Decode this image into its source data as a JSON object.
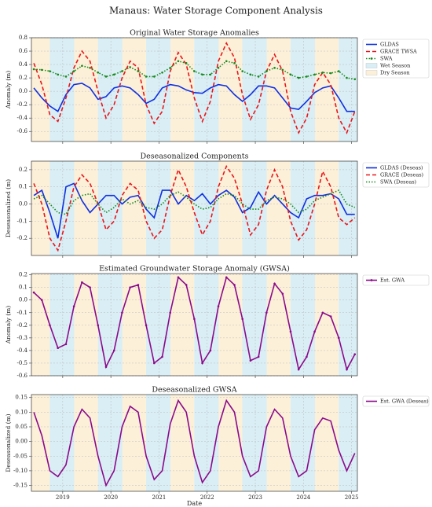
{
  "title": "Manaus: Water Storage Component Analysis",
  "chart_data": [
    {
      "type": "line",
      "title": "Original Water Storage Anomalies",
      "ylabel": "Anomaly (m)",
      "xlim": [
        2018.35,
        2025.12
      ],
      "ylim": [
        -0.75,
        0.8
      ],
      "yticks": [
        -0.6,
        -0.4,
        -0.2,
        {
          "value": 0,
          "label": "0.0"
        },
        0.2,
        0.4,
        0.6,
        0.8
      ],
      "grid": true,
      "legend": "outside-right",
      "x": [
        2018.4,
        2018.567,
        2018.733,
        2018.9,
        2019.067,
        2019.233,
        2019.4,
        2019.567,
        2019.733,
        2019.9,
        2020.067,
        2020.233,
        2020.4,
        2020.567,
        2020.733,
        2020.9,
        2021.067,
        2021.233,
        2021.4,
        2021.567,
        2021.733,
        2021.9,
        2022.067,
        2022.233,
        2022.4,
        2022.567,
        2022.733,
        2022.9,
        2023.067,
        2023.233,
        2023.4,
        2023.567,
        2023.733,
        2023.9,
        2024.067,
        2024.233,
        2024.4,
        2024.567,
        2024.733,
        2024.9,
        2025.067
      ],
      "series": [
        {
          "name": "GLDAS",
          "color": "#1030e0",
          "style": "solid",
          "marker": false,
          "values": [
            0.05,
            -0.1,
            -0.22,
            -0.3,
            -0.05,
            0.1,
            0.12,
            0.05,
            -0.12,
            -0.08,
            0.05,
            0.08,
            0.05,
            -0.05,
            -0.18,
            -0.12,
            0.05,
            0.1,
            0.08,
            0.02,
            -0.02,
            -0.03,
            0.05,
            0.1,
            0.08,
            -0.05,
            -0.15,
            -0.05,
            0.08,
            0.08,
            0.05,
            -0.1,
            -0.25,
            -0.27,
            -0.15,
            -0.02,
            0.05,
            0.08,
            -0.1,
            -0.3,
            -0.3
          ]
        },
        {
          "name": "GRACE TWSA",
          "color": "#e8161b",
          "style": "dashed",
          "marker": false,
          "values": [
            0.42,
            0.1,
            -0.35,
            -0.45,
            -0.1,
            0.35,
            0.6,
            0.45,
            0.0,
            -0.4,
            -0.2,
            0.2,
            0.45,
            0.35,
            -0.2,
            -0.48,
            -0.3,
            0.3,
            0.58,
            0.4,
            -0.1,
            -0.45,
            -0.15,
            0.45,
            0.72,
            0.5,
            -0.05,
            -0.42,
            -0.2,
            0.3,
            0.55,
            0.3,
            -0.3,
            -0.62,
            -0.4,
            0.1,
            0.28,
            0.1,
            -0.4,
            -0.62,
            -0.3
          ]
        },
        {
          "name": "SWA",
          "color": "#16891c",
          "style": "dotted",
          "marker": true,
          "values": [
            0.33,
            0.32,
            0.3,
            0.25,
            0.22,
            0.3,
            0.38,
            0.35,
            0.28,
            0.22,
            0.25,
            0.3,
            0.36,
            0.3,
            0.22,
            0.22,
            0.28,
            0.35,
            0.45,
            0.42,
            0.3,
            0.25,
            0.25,
            0.35,
            0.45,
            0.42,
            0.3,
            0.25,
            0.22,
            0.3,
            0.35,
            0.32,
            0.25,
            0.2,
            0.22,
            0.25,
            0.28,
            0.27,
            0.3,
            0.2,
            0.18
          ]
        }
      ],
      "seasons": [
        {
          "name": "Wet Season",
          "color": "#d9eef5",
          "spans": [
            [
              2018.73,
              2019.24
            ],
            [
              2019.73,
              2020.24
            ],
            [
              2020.73,
              2021.24
            ],
            [
              2021.73,
              2022.24
            ],
            [
              2022.73,
              2023.24
            ],
            [
              2023.73,
              2024.24
            ],
            [
              2024.73,
              2025.12
            ]
          ]
        },
        {
          "name": "Dry Season",
          "color": "#fdf0d8",
          "spans": [
            [
              2018.35,
              2018.73
            ],
            [
              2019.24,
              2019.73
            ],
            [
              2020.24,
              2020.73
            ],
            [
              2021.24,
              2021.73
            ],
            [
              2022.24,
              2022.73
            ],
            [
              2023.24,
              2023.73
            ],
            [
              2024.24,
              2024.73
            ]
          ]
        }
      ]
    },
    {
      "type": "line",
      "title": "Deseasonalized Components",
      "ylabel": "Deseasonalized (m)",
      "xlim": [
        2018.35,
        2025.12
      ],
      "ylim": [
        -0.3,
        0.25
      ],
      "yticks": [
        -0.2,
        -0.1,
        {
          "value": 0,
          "label": "0.0"
        },
        0.1,
        0.2
      ],
      "grid": true,
      "legend": "outside-right",
      "x": [
        2018.4,
        2018.567,
        2018.733,
        2018.9,
        2019.067,
        2019.233,
        2019.4,
        2019.567,
        2019.733,
        2019.9,
        2020.067,
        2020.233,
        2020.4,
        2020.567,
        2020.733,
        2020.9,
        2021.067,
        2021.233,
        2021.4,
        2021.567,
        2021.733,
        2021.9,
        2022.067,
        2022.233,
        2022.4,
        2022.567,
        2022.733,
        2022.9,
        2023.067,
        2023.233,
        2023.4,
        2023.567,
        2023.733,
        2023.9,
        2024.067,
        2024.233,
        2024.4,
        2024.567,
        2024.733,
        2024.9,
        2025.067
      ],
      "series": [
        {
          "name": "GLDAS (Deseas)",
          "color": "#1030e0",
          "style": "solid",
          "marker": false,
          "values": [
            0.05,
            0.08,
            -0.05,
            -0.2,
            0.1,
            0.12,
            0.02,
            -0.05,
            0.0,
            0.05,
            0.05,
            0.0,
            0.04,
            0.05,
            -0.03,
            -0.08,
            0.08,
            0.08,
            0.0,
            0.05,
            0.02,
            0.06,
            0.0,
            0.05,
            0.08,
            0.04,
            -0.05,
            -0.02,
            0.07,
            0.0,
            0.05,
            0.0,
            -0.05,
            -0.08,
            0.03,
            0.05,
            0.05,
            0.06,
            0.03,
            -0.06,
            -0.06
          ]
        },
        {
          "name": "GRACE (Deseas)",
          "color": "#e8161b",
          "style": "dashed",
          "marker": false,
          "values": [
            0.12,
            0.0,
            -0.2,
            -0.27,
            -0.1,
            0.1,
            0.17,
            0.12,
            0.0,
            -0.15,
            -0.1,
            0.05,
            0.12,
            0.08,
            -0.1,
            -0.2,
            -0.15,
            0.05,
            0.2,
            0.1,
            -0.05,
            -0.18,
            -0.1,
            0.1,
            0.22,
            0.15,
            0.0,
            -0.18,
            -0.12,
            0.08,
            0.2,
            0.1,
            -0.1,
            -0.21,
            -0.15,
            0.0,
            0.19,
            0.1,
            -0.08,
            -0.12,
            -0.08
          ]
        },
        {
          "name": "SWA (Deseas)",
          "color": "#16891c",
          "style": "dotted",
          "marker": false,
          "values": [
            0.03,
            0.05,
            0.0,
            -0.05,
            -0.06,
            0.02,
            0.05,
            0.06,
            0.0,
            -0.05,
            -0.02,
            0.03,
            0.0,
            0.02,
            -0.02,
            -0.03,
            0.0,
            0.05,
            0.07,
            0.04,
            0.0,
            -0.03,
            -0.02,
            0.03,
            0.06,
            0.05,
            0.0,
            -0.03,
            -0.03,
            0.02,
            0.04,
            0.03,
            0.0,
            -0.05,
            -0.03,
            0.02,
            0.04,
            0.06,
            0.08,
            0.0,
            -0.02
          ]
        }
      ]
    },
    {
      "type": "line",
      "title": "Estimated Groundwater Storage Anomaly (GWSA)",
      "ylabel": "Anomaly (m)",
      "xlim": [
        2018.35,
        2025.12
      ],
      "ylim": [
        -0.6,
        0.21
      ],
      "yticks": [
        -0.6,
        -0.5,
        -0.4,
        -0.3,
        -0.2,
        -0.1,
        {
          "value": 0,
          "label": "0.0"
        },
        0.1,
        0.2
      ],
      "grid": true,
      "legend": "outside-right",
      "x": [
        2018.4,
        2018.567,
        2018.733,
        2018.9,
        2019.067,
        2019.233,
        2019.4,
        2019.567,
        2019.733,
        2019.9,
        2020.067,
        2020.233,
        2020.4,
        2020.567,
        2020.733,
        2020.9,
        2021.067,
        2021.233,
        2021.4,
        2021.567,
        2021.733,
        2021.9,
        2022.067,
        2022.233,
        2022.4,
        2022.567,
        2022.733,
        2022.9,
        2023.067,
        2023.233,
        2023.4,
        2023.567,
        2023.733,
        2023.9,
        2024.067,
        2024.233,
        2024.4,
        2024.567,
        2024.733,
        2024.9,
        2025.067
      ],
      "series": [
        {
          "name": "Est. GWA",
          "color": "#8b0a8b",
          "style": "solid",
          "marker": true,
          "values": [
            0.06,
            0.0,
            -0.2,
            -0.38,
            -0.35,
            -0.05,
            0.14,
            0.1,
            -0.2,
            -0.53,
            -0.4,
            -0.1,
            0.1,
            0.12,
            -0.2,
            -0.5,
            -0.45,
            -0.1,
            0.18,
            0.12,
            -0.15,
            -0.5,
            -0.4,
            -0.05,
            0.18,
            0.12,
            -0.15,
            -0.48,
            -0.45,
            -0.1,
            0.13,
            0.05,
            -0.25,
            -0.55,
            -0.45,
            -0.25,
            -0.1,
            -0.13,
            -0.3,
            -0.55,
            -0.43
          ]
        }
      ]
    },
    {
      "type": "line",
      "title": "Deseasonalized GWSA",
      "ylabel": "Deseasonalized (m)",
      "xlabel": "Date",
      "xlim": [
        2018.35,
        2025.12
      ],
      "ylim": [
        -0.17,
        0.16
      ],
      "xticks": [
        2019,
        2020,
        2021,
        2022,
        2023,
        2024,
        2025
      ],
      "yticks": [
        -0.15,
        {
          "value": -0.1,
          "label": "-0.10"
        },
        -0.05,
        {
          "value": 0,
          "label": "0.00"
        },
        0.05,
        {
          "value": 0.1,
          "label": "0.10"
        },
        0.15
      ],
      "grid": true,
      "legend": "outside-right",
      "x": [
        2018.4,
        2018.567,
        2018.733,
        2018.9,
        2019.067,
        2019.233,
        2019.4,
        2019.567,
        2019.733,
        2019.9,
        2020.067,
        2020.233,
        2020.4,
        2020.567,
        2020.733,
        2020.9,
        2021.067,
        2021.233,
        2021.4,
        2021.567,
        2021.733,
        2021.9,
        2022.067,
        2022.233,
        2022.4,
        2022.567,
        2022.733,
        2022.9,
        2023.067,
        2023.233,
        2023.4,
        2023.567,
        2023.733,
        2023.9,
        2024.067,
        2024.233,
        2024.4,
        2024.567,
        2024.733,
        2024.9,
        2025.067
      ],
      "series": [
        {
          "name": "Est. GWA (Deseas)",
          "color": "#8b0a8b",
          "style": "solid",
          "marker": false,
          "values": [
            0.1,
            0.02,
            -0.1,
            -0.12,
            -0.08,
            0.05,
            0.11,
            0.08,
            -0.05,
            -0.15,
            -0.1,
            0.05,
            0.12,
            0.1,
            -0.05,
            -0.13,
            -0.1,
            0.06,
            0.14,
            0.1,
            -0.05,
            -0.14,
            -0.1,
            0.05,
            0.14,
            0.1,
            -0.05,
            -0.12,
            -0.1,
            0.05,
            0.11,
            0.08,
            -0.05,
            -0.12,
            -0.1,
            0.04,
            0.08,
            0.07,
            -0.03,
            -0.1,
            -0.04
          ]
        }
      ]
    }
  ]
}
